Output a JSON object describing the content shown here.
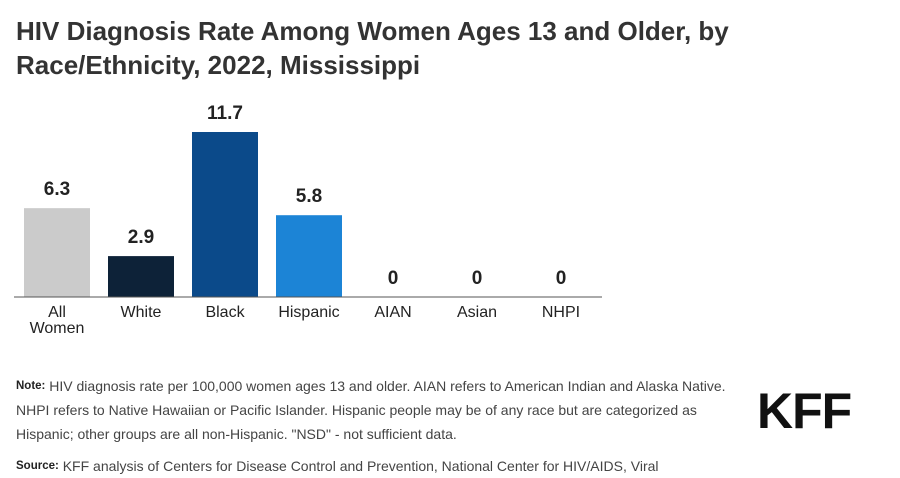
{
  "title": "HIV Diagnosis Rate Among Women Ages 13 and Older, by Race/Ethnicity, 2022, Mississippi",
  "note_label": "Note:",
  "note_text": "HIV diagnosis rate per 100,000 women ages 13 and older. AIAN refers to American Indian and Alaska Native. NHPI refers to Native Hawaiian or Pacific Islander. Hispanic people may be of any race but are categorized as Hispanic; other groups are all non-Hispanic. \"NSD\" - not sufficient data.",
  "source_label": "Source:",
  "source_text": "KFF analysis of Centers for Disease Control and Prevention, National Center for HIV/AIDS, Viral",
  "logo": "KFF",
  "chart_data": {
    "type": "bar",
    "categories": [
      [
        "All",
        "Women"
      ],
      [
        "White"
      ],
      [
        "Black"
      ],
      [
        "Hispanic"
      ],
      [
        "AIAN"
      ],
      [
        "Asian"
      ],
      [
        "NHPI"
      ]
    ],
    "values": [
      6.3,
      2.9,
      11.7,
      5.8,
      0,
      0,
      0
    ],
    "value_labels": [
      "6.3",
      "2.9",
      "11.7",
      "5.8",
      "0",
      "0",
      "0"
    ],
    "colors": [
      "#cbcbcb",
      "#0d2238",
      "#0b4a8a",
      "#1c84d6",
      "#1c84d6",
      "#1c84d6",
      "#1c84d6"
    ],
    "ylim": [
      0,
      11.7
    ],
    "grid": false,
    "legend": "none"
  }
}
